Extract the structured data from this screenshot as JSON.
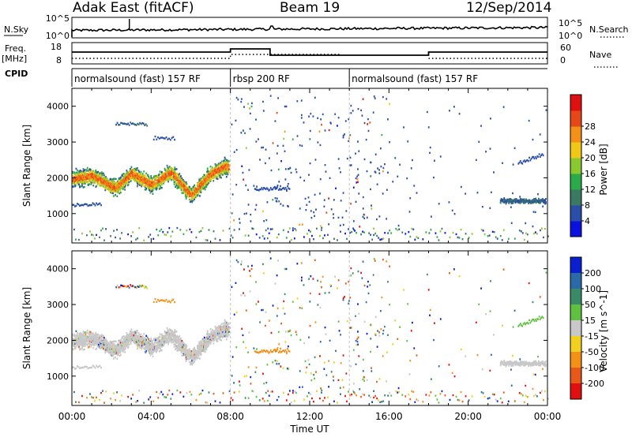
{
  "header": {
    "radar": "Adak East (fitACF)",
    "beam": "Beam 19",
    "date": "12/Sep/2014"
  },
  "noise_panel": {
    "left_label": "N.Sky",
    "right_label": "N.Search",
    "left_ticks": [
      "10^5",
      "10^0"
    ],
    "right_ticks": [
      "10^5",
      "10^0"
    ]
  },
  "freq_panel": {
    "left_label_top": "Freq.",
    "left_label_unit": "[MHz]",
    "left_ticks": [
      "18",
      "8"
    ],
    "right_ticks": [
      "60",
      "0"
    ],
    "right_label": "Nave",
    "cpid_label": "CPID"
  },
  "cpid_segments": [
    {
      "label": "normalsound (fast) 157 RF",
      "start_h": 0,
      "end_h": 8
    },
    {
      "label": "rbsp 200 RF",
      "start_h": 8,
      "end_h": 14
    },
    {
      "label": "normalsound (fast) 157 RF",
      "start_h": 14,
      "end_h": 24
    }
  ],
  "chart_data": [
    {
      "type": "heatmap",
      "title": "",
      "xlabel": "Time UT",
      "ylabel": "Slant Range [km]",
      "x_ticks": [
        "00:00",
        "04:00",
        "08:00",
        "12:00",
        "16:00",
        "20:00",
        "00:00"
      ],
      "xlim_hours": [
        0,
        24
      ],
      "y_ticks": [
        1000,
        2000,
        3000,
        4000
      ],
      "ylim": [
        180,
        4500
      ],
      "colorbar": {
        "label": "Power [dB]",
        "ticks": [
          "4",
          "8",
          "12",
          "16",
          "20",
          "24",
          "28"
        ],
        "colors": [
          "#0a10e0",
          "#2a4ea8",
          "#3a7a62",
          "#2aaa48",
          "#8ac830",
          "#f2c818",
          "#f29018",
          "#e84818",
          "#e01010"
        ]
      },
      "echo_band": [
        {
          "t": 0.0,
          "r": 1950
        },
        {
          "t": 1.0,
          "r": 2050
        },
        {
          "t": 2.2,
          "r": 1700
        },
        {
          "t": 3.0,
          "r": 2120
        },
        {
          "t": 4.0,
          "r": 1800
        },
        {
          "t": 5.0,
          "r": 2150
        },
        {
          "t": 6.0,
          "r": 1500
        },
        {
          "t": 7.0,
          "r": 2100
        },
        {
          "t": 7.7,
          "r": 2300
        }
      ]
    },
    {
      "type": "heatmap",
      "title": "",
      "xlabel": "Time UT",
      "ylabel": "Slant Range [km]",
      "x_ticks": [
        "00:00",
        "04:00",
        "08:00",
        "12:00",
        "16:00",
        "20:00",
        "00:00"
      ],
      "xlim_hours": [
        0,
        24
      ],
      "y_ticks": [
        1000,
        2000,
        3000,
        4000
      ],
      "ylim": [
        180,
        4500
      ],
      "colorbar": {
        "label": "Velocity [m s^-1]",
        "ticks": [
          "200",
          "100",
          "50",
          "15",
          "-15",
          "-50",
          "-100",
          "-200"
        ],
        "colors": [
          "#0a20d0",
          "#2a6aa8",
          "#3a8a68",
          "#60c040",
          "#c8c8c8",
          "#f2d020",
          "#f29018",
          "#e85818",
          "#e01010"
        ]
      }
    }
  ]
}
